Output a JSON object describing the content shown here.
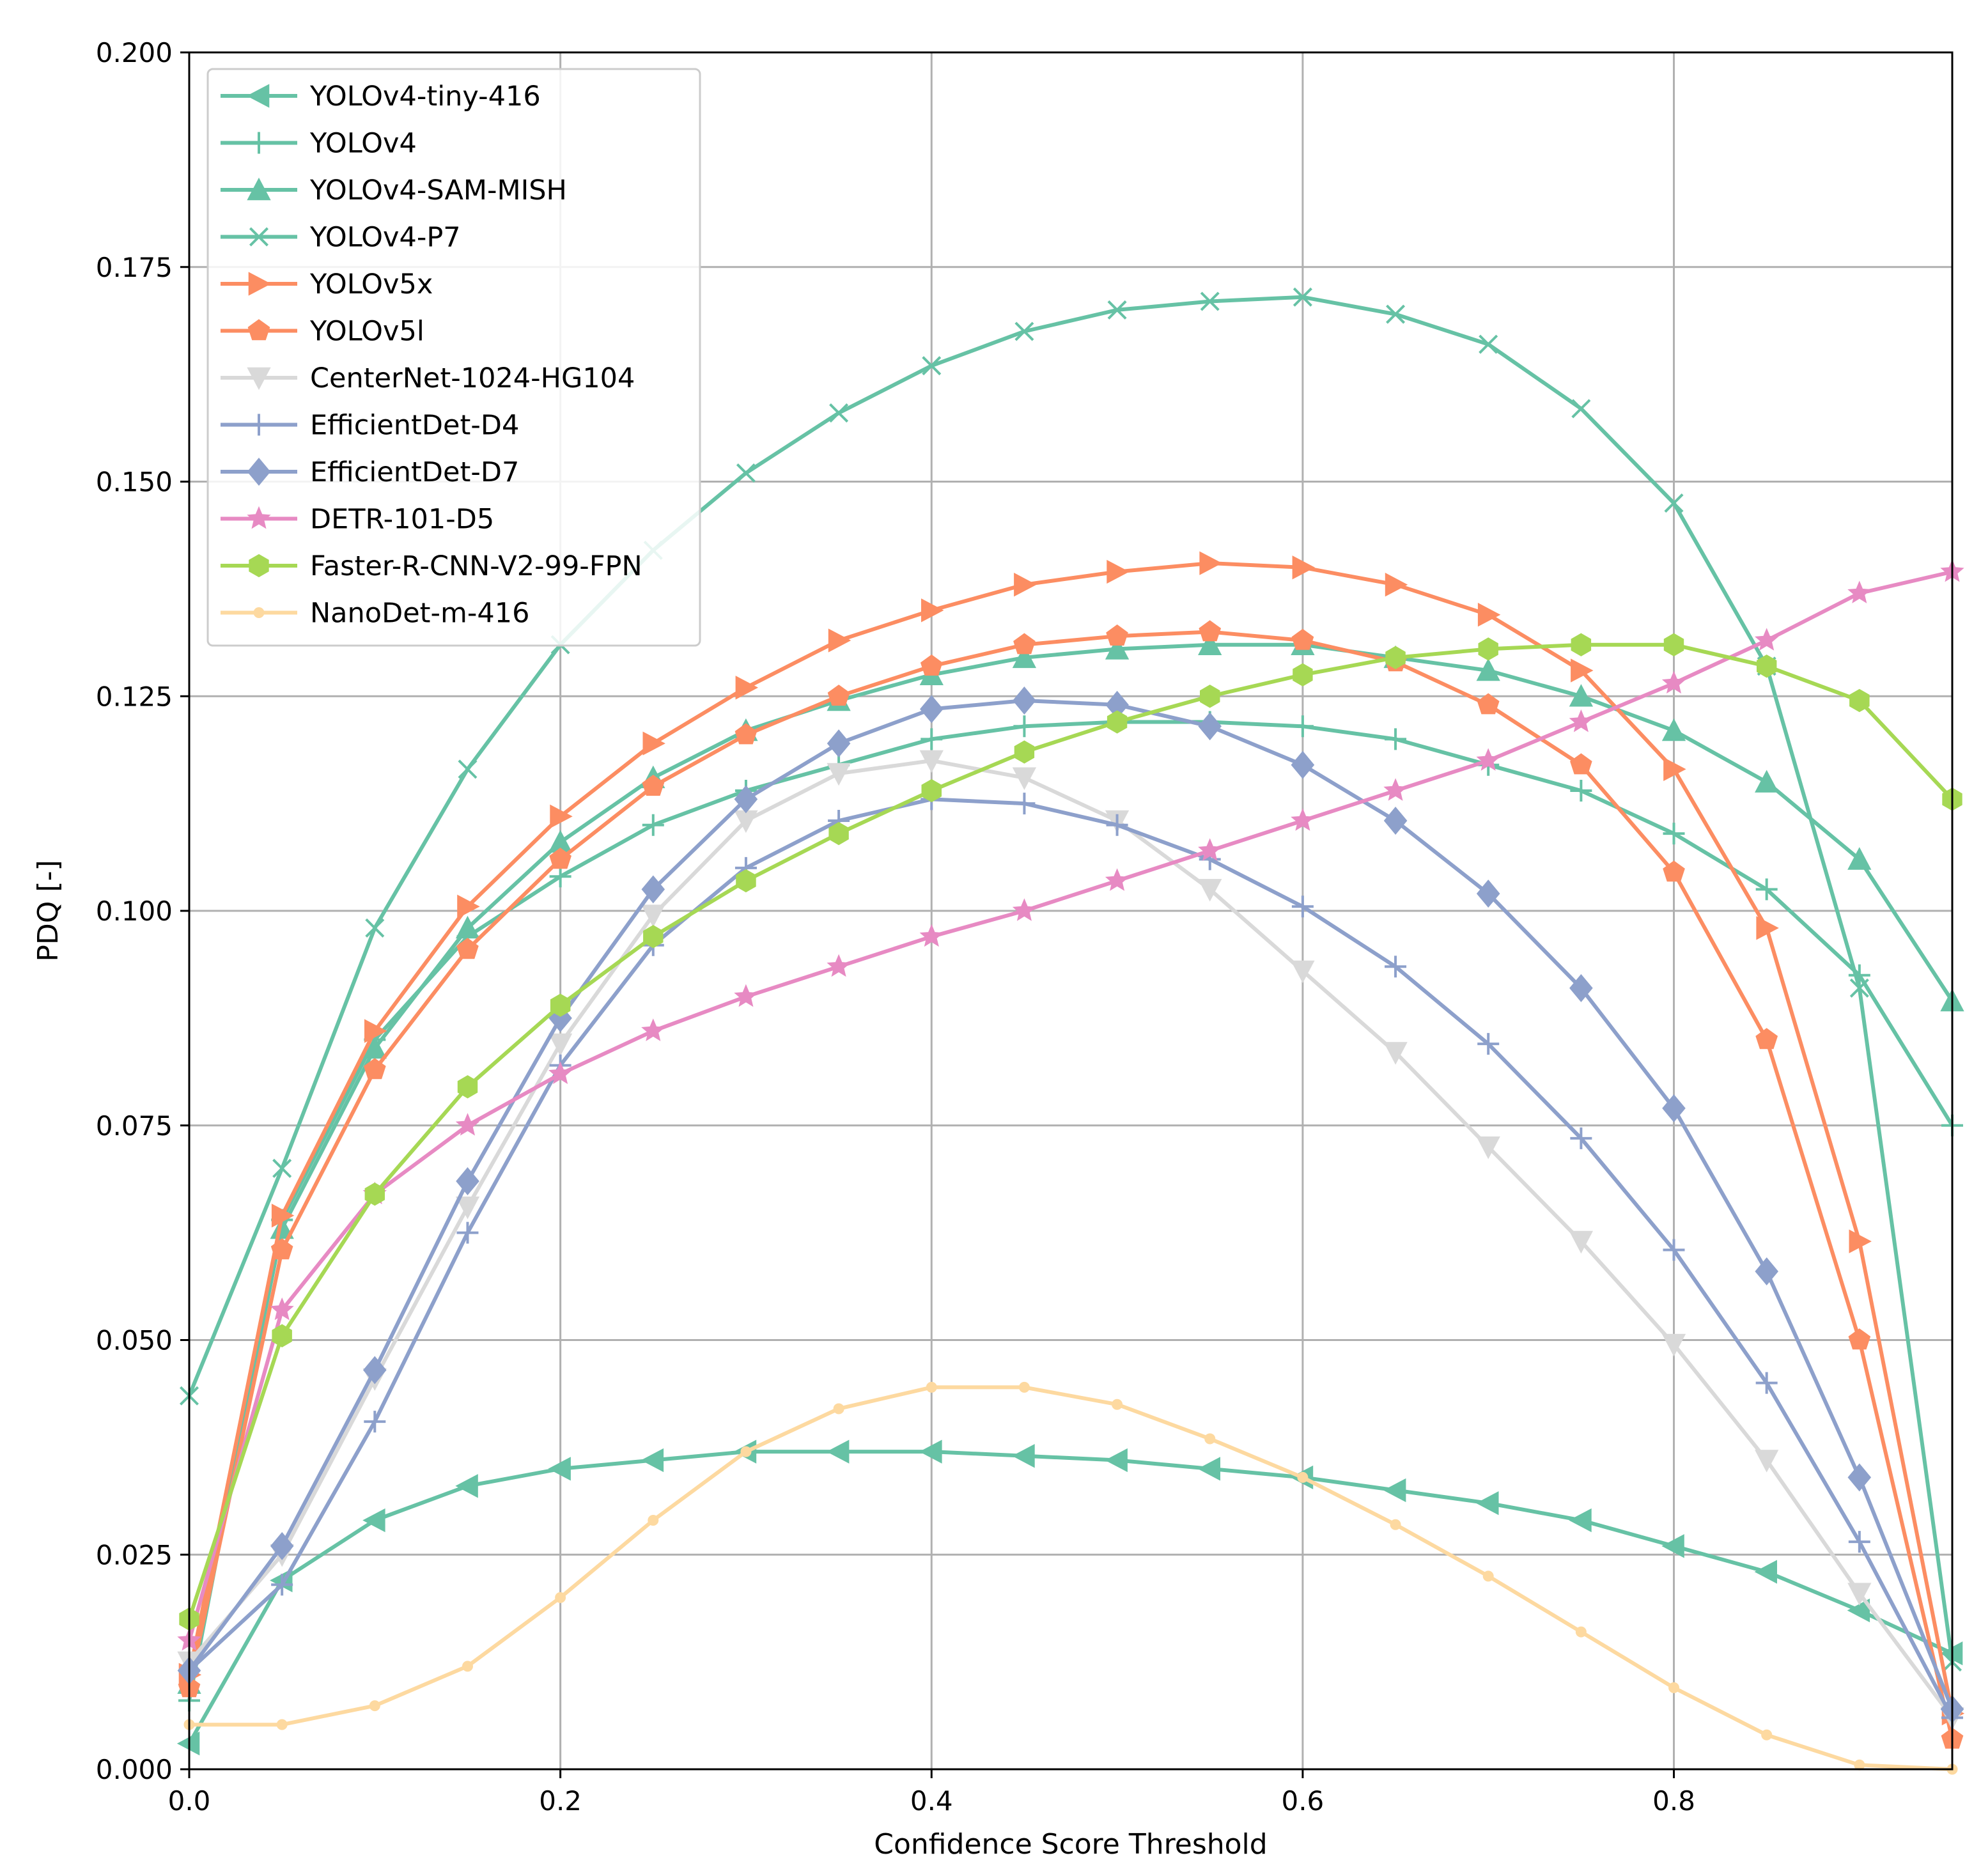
{
  "chart_data": {
    "type": "line",
    "title": "",
    "xlabel": "Confidence Score Threshold",
    "ylabel": "PDQ [-]",
    "xlim": [
      0.0,
      0.95
    ],
    "ylim": [
      0.0,
      0.2
    ],
    "grid": true,
    "legend_position": "top-left",
    "x_ticks": [
      0.0,
      0.2,
      0.4,
      0.6,
      0.8
    ],
    "x_tick_labels": [
      "0.0",
      "0.2",
      "0.4",
      "0.6",
      "0.8"
    ],
    "y_ticks": [
      0.0,
      0.025,
      0.05,
      0.075,
      0.1,
      0.125,
      0.15,
      0.175,
      0.2
    ],
    "y_tick_labels": [
      "0.000",
      "0.025",
      "0.050",
      "0.075",
      "0.100",
      "0.125",
      "0.150",
      "0.175",
      "0.200"
    ],
    "x": [
      0.0,
      0.05,
      0.1,
      0.15,
      0.2,
      0.25,
      0.3,
      0.35,
      0.4,
      0.45,
      0.5,
      0.55,
      0.6,
      0.65,
      0.7,
      0.75,
      0.8,
      0.85,
      0.9,
      0.95
    ],
    "series": [
      {
        "name": "YOLOv4-tiny-416",
        "color": "#66c2a5",
        "marker": "triangle-left",
        "values": [
          0.003,
          0.022,
          0.029,
          0.033,
          0.035,
          0.036,
          0.037,
          0.037,
          0.037,
          0.0365,
          0.036,
          0.035,
          0.034,
          0.0325,
          0.031,
          0.029,
          0.026,
          0.023,
          0.0185,
          0.0135
        ]
      },
      {
        "name": "YOLOv4",
        "color": "#66c2a5",
        "marker": "plus",
        "values": [
          0.008,
          0.064,
          0.085,
          0.097,
          0.104,
          0.11,
          0.114,
          0.117,
          0.12,
          0.1215,
          0.122,
          0.122,
          0.1215,
          0.12,
          0.117,
          0.114,
          0.109,
          0.1025,
          0.0925,
          0.075
        ]
      },
      {
        "name": "YOLOv4-SAM-MISH",
        "color": "#66c2a5",
        "marker": "triangle-up",
        "values": [
          0.01,
          0.063,
          0.084,
          0.098,
          0.108,
          0.1155,
          0.121,
          0.1245,
          0.1275,
          0.1295,
          0.1305,
          0.131,
          0.131,
          0.1295,
          0.128,
          0.125,
          0.121,
          0.115,
          0.106,
          0.0895
        ]
      },
      {
        "name": "YOLOv4-P7",
        "color": "#66c2a5",
        "marker": "x",
        "values": [
          0.0435,
          0.07,
          0.098,
          0.1165,
          0.131,
          0.142,
          0.151,
          0.158,
          0.1635,
          0.1675,
          0.17,
          0.171,
          0.1715,
          0.1695,
          0.166,
          0.1585,
          0.1475,
          0.1285,
          0.091,
          0.0125
        ]
      },
      {
        "name": "YOLOv5x",
        "color": "#fc8d62",
        "marker": "triangle-right",
        "values": [
          0.011,
          0.0645,
          0.086,
          0.1005,
          0.111,
          0.1195,
          0.126,
          0.1315,
          0.135,
          0.138,
          0.1395,
          0.1405,
          0.14,
          0.138,
          0.1345,
          0.128,
          0.1165,
          0.098,
          0.0615,
          0.0065
        ]
      },
      {
        "name": "YOLOv5l",
        "color": "#fc8d62",
        "marker": "pentagon",
        "values": [
          0.0095,
          0.0605,
          0.0815,
          0.0955,
          0.106,
          0.1145,
          0.1205,
          0.125,
          0.1285,
          0.131,
          0.132,
          0.1325,
          0.1315,
          0.129,
          0.124,
          0.117,
          0.1045,
          0.085,
          0.05,
          0.0035
        ]
      },
      {
        "name": "CenterNet-1024-HG104",
        "color": "#d9d9d9",
        "marker": "triangle-down",
        "values": [
          0.0125,
          0.025,
          0.0455,
          0.0655,
          0.0845,
          0.0995,
          0.1105,
          0.116,
          0.1175,
          0.1155,
          0.1105,
          0.1025,
          0.093,
          0.0835,
          0.0725,
          0.0615,
          0.0495,
          0.036,
          0.0205,
          0.006
        ]
      },
      {
        "name": "EfficientDet-D4",
        "color": "#8da0cb",
        "marker": "plus",
        "values": [
          0.0115,
          0.0215,
          0.0405,
          0.0625,
          0.082,
          0.096,
          0.105,
          0.1105,
          0.113,
          0.1125,
          0.11,
          0.106,
          0.1005,
          0.0935,
          0.0845,
          0.0735,
          0.0605,
          0.045,
          0.0265,
          0.006
        ]
      },
      {
        "name": "EfficientDet-D7",
        "color": "#8da0cb",
        "marker": "diamond",
        "values": [
          0.0115,
          0.026,
          0.0465,
          0.0685,
          0.0875,
          0.1025,
          0.113,
          0.1195,
          0.1235,
          0.1245,
          0.124,
          0.1215,
          0.117,
          0.1105,
          0.102,
          0.091,
          0.077,
          0.058,
          0.034,
          0.007
        ]
      },
      {
        "name": "DETR-101-D5",
        "color": "#e78ac3",
        "marker": "star",
        "values": [
          0.015,
          0.0535,
          0.067,
          0.075,
          0.081,
          0.086,
          0.09,
          0.0935,
          0.097,
          0.1,
          0.1035,
          0.107,
          0.1105,
          0.114,
          0.1175,
          0.122,
          0.1265,
          0.1315,
          0.137,
          0.1395
        ]
      },
      {
        "name": "Faster-R-CNN-V2-99-FPN",
        "color": "#a6d854",
        "marker": "hexagon",
        "values": [
          0.0175,
          0.0505,
          0.067,
          0.0795,
          0.089,
          0.097,
          0.1035,
          0.109,
          0.114,
          0.1185,
          0.122,
          0.125,
          0.1275,
          0.1295,
          0.1305,
          0.131,
          0.131,
          0.1285,
          0.1245,
          0.113
        ]
      },
      {
        "name": "NanoDet-m-416",
        "color": "#ffd92f",
        "line_color": "#fdd9a0",
        "marker": "point",
        "values": [
          0.0052,
          0.0052,
          0.0074,
          0.012,
          0.02,
          0.029,
          0.037,
          0.042,
          0.0445,
          0.0445,
          0.0425,
          0.0385,
          0.034,
          0.0285,
          0.0225,
          0.016,
          0.0095,
          0.004,
          0.0005,
          0.0
        ]
      }
    ]
  }
}
